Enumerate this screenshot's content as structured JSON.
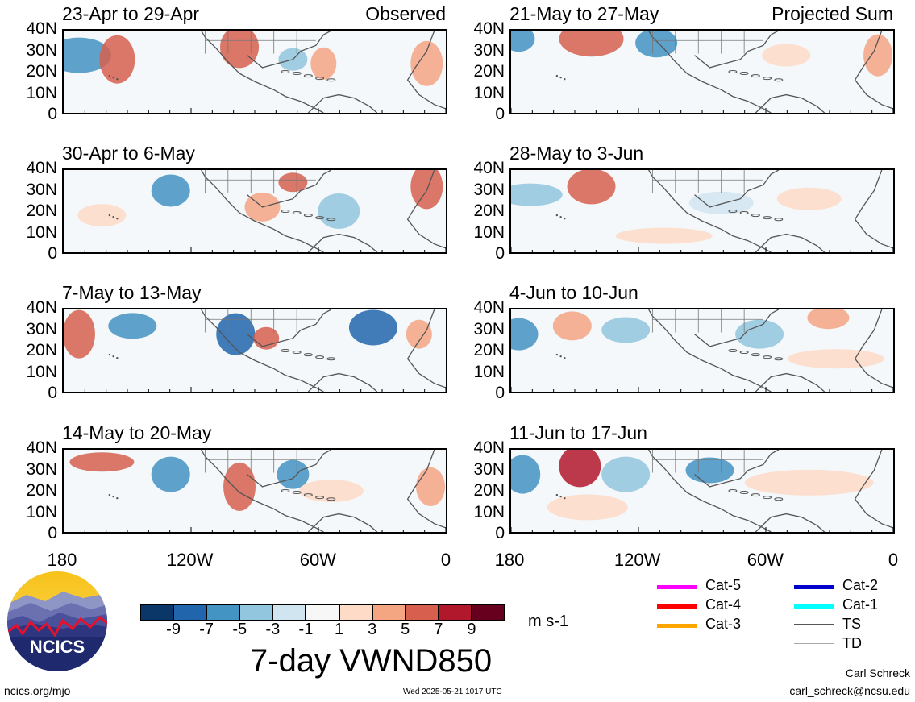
{
  "panels_left": [
    {
      "title": "23-Apr to 29-Apr",
      "tag": "Observed"
    },
    {
      "title": "30-Apr to 6-May",
      "tag": ""
    },
    {
      "title": "7-May to 13-May",
      "tag": ""
    },
    {
      "title": "14-May to 20-May",
      "tag": ""
    }
  ],
  "panels_right": [
    {
      "title": "21-May to 27-May",
      "tag": "Projected Sum"
    },
    {
      "title": "28-May to 3-Jun",
      "tag": ""
    },
    {
      "title": "4-Jun to 10-Jun",
      "tag": ""
    },
    {
      "title": "11-Jun to 17-Jun",
      "tag": ""
    }
  ],
  "lat_ticks": [
    "40N",
    "30N",
    "20N",
    "10N",
    "0"
  ],
  "lon_ticks": [
    "180",
    "120W",
    "60W",
    "0"
  ],
  "colorbar": {
    "labels": [
      "-9",
      "-7",
      "-5",
      "-3",
      "-1",
      "1",
      "3",
      "5",
      "7",
      "9"
    ],
    "colors": [
      "#0b3768",
      "#2166ac",
      "#4393c3",
      "#92c5de",
      "#d1e5f0",
      "#f7f7f7",
      "#fddbc7",
      "#f4a582",
      "#d6604d",
      "#b2182b",
      "#67001f"
    ],
    "units": "m s-1",
    "title": "7-day VWND850"
  },
  "track_legend": [
    {
      "label": "Cat-5",
      "color": "#ff00ff"
    },
    {
      "label": "Cat-4",
      "color": "#ff0000"
    },
    {
      "label": "Cat-3",
      "color": "#ffa500"
    },
    {
      "label": "Cat-2",
      "color": "#0000cd"
    },
    {
      "label": "Cat-1",
      "color": "#00ffff"
    },
    {
      "label": "TS",
      "color": "#555555"
    },
    {
      "label": "TD",
      "color": "#aaaaaa"
    }
  ],
  "logo": {
    "text": "NCICS"
  },
  "footer": {
    "url": "ncics.org/mjo",
    "timestamp": "Wed 2025-05-21 1017 UTC",
    "author": "Carl Schreck",
    "email": "carl_schreck@ncsu.edu"
  }
}
